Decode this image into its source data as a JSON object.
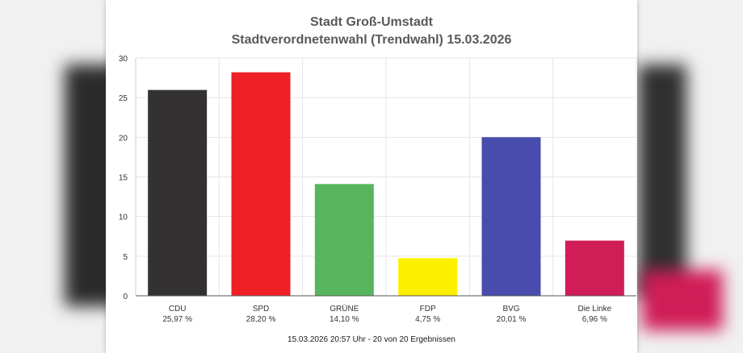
{
  "chart_data": {
    "type": "bar",
    "title": "Stadt Groß-Umstadt",
    "subtitle": "Stadtverordnetenwahl (Trendwahl) 15.03.2026",
    "categories": [
      "CDU",
      "SPD",
      "GRÜNE",
      "FDP",
      "BVG",
      "Die Linke"
    ],
    "values": [
      25.97,
      28.2,
      14.1,
      4.75,
      20.01,
      6.96
    ],
    "value_labels": [
      "25,97 %",
      "28,20 %",
      "14,10 %",
      "4,75 %",
      "20,01 %",
      "6,96 %"
    ],
    "colors": [
      "#333132",
      "#ee1f25",
      "#56b55d",
      "#fdef00",
      "#484dad",
      "#d01c57"
    ],
    "ylim": [
      0,
      30
    ],
    "yticks": [
      0,
      5,
      10,
      15,
      20,
      25,
      30
    ],
    "grid": true,
    "xlabel": "",
    "ylabel": "",
    "footer": "15.03.2026 20:57 Uhr - 20 von 20 Ergebnissen"
  }
}
